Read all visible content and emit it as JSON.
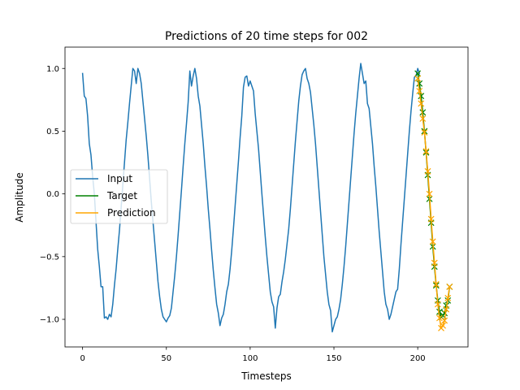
{
  "chart_data": {
    "type": "line",
    "title": "Predictions of 20 time steps for 002",
    "xlabel": "Timesteps",
    "ylabel": "Amplitude",
    "xlim": [
      -10.5,
      230
    ],
    "ylim": [
      -1.22,
      1.17
    ],
    "grid": false,
    "legend_position": "center-left",
    "x_ticks": [
      {
        "value": 0,
        "label": "0"
      },
      {
        "value": 50,
        "label": "50"
      },
      {
        "value": 100,
        "label": "100"
      },
      {
        "value": 150,
        "label": "150"
      },
      {
        "value": 200,
        "label": "200"
      }
    ],
    "y_ticks": [
      {
        "value": -1.0,
        "label": "−1.0"
      },
      {
        "value": -0.5,
        "label": "−0.5"
      },
      {
        "value": 0.0,
        "label": "0.0"
      },
      {
        "value": 0.5,
        "label": "0.5"
      },
      {
        "value": 1.0,
        "label": "1.0"
      }
    ],
    "series": [
      {
        "name": "Input",
        "color": "#1f77b4",
        "marker": "none",
        "x_start": 0,
        "values": [
          0.96,
          0.78,
          0.76,
          0.62,
          0.4,
          0.31,
          0.14,
          0.0,
          -0.22,
          -0.44,
          -0.58,
          -0.74,
          -0.74,
          -0.99,
          -0.98,
          -1.0,
          -0.96,
          -0.98,
          -0.88,
          -0.73,
          -0.6,
          -0.44,
          -0.29,
          -0.11,
          0.07,
          0.25,
          0.43,
          0.57,
          0.72,
          0.86,
          1.0,
          0.98,
          0.88,
          1.0,
          0.96,
          0.88,
          0.74,
          0.6,
          0.46,
          0.3,
          0.12,
          -0.06,
          -0.22,
          -0.38,
          -0.54,
          -0.7,
          -0.82,
          -0.92,
          -0.98,
          -1.0,
          -1.02,
          -0.99,
          -0.97,
          -0.91,
          -0.78,
          -0.65,
          -0.5,
          -0.33,
          -0.15,
          0.03,
          0.22,
          0.4,
          0.56,
          0.73,
          0.98,
          0.86,
          0.94,
          1.0,
          0.92,
          0.78,
          0.7,
          0.55,
          0.4,
          0.22,
          0.06,
          -0.12,
          -0.28,
          -0.45,
          -0.61,
          -0.75,
          -0.88,
          -0.95,
          -1.05,
          -0.99,
          -0.96,
          -0.88,
          -0.78,
          -0.72,
          -0.6,
          -0.45,
          -0.28,
          -0.1,
          0.08,
          0.26,
          0.45,
          0.62,
          0.85,
          0.93,
          0.94,
          0.86,
          0.9,
          0.86,
          0.82,
          0.64,
          0.5,
          0.36,
          0.18,
          0.0,
          -0.17,
          -0.34,
          -0.5,
          -0.64,
          -0.78,
          -0.86,
          -0.9,
          -1.07,
          -0.91,
          -0.82,
          -0.8,
          -0.7,
          -0.62,
          -0.52,
          -0.4,
          -0.28,
          -0.12,
          0.06,
          0.24,
          0.42,
          0.58,
          0.74,
          0.86,
          0.95,
          0.98,
          1.0,
          0.92,
          0.88,
          0.81,
          0.68,
          0.55,
          0.4,
          0.22,
          0.04,
          -0.14,
          -0.32,
          -0.5,
          -0.64,
          -0.78,
          -0.88,
          -0.93,
          -1.1,
          -1.05,
          -1.0,
          -0.98,
          -0.92,
          -0.84,
          -0.72,
          -0.58,
          -0.42,
          -0.24,
          -0.06,
          0.12,
          0.3,
          0.48,
          0.64,
          0.78,
          0.92,
          1.04,
          0.96,
          0.88,
          0.9,
          0.72,
          0.68,
          0.54,
          0.4,
          0.22,
          0.06,
          -0.12,
          -0.3,
          -0.46,
          -0.62,
          -0.78,
          -0.88,
          -0.92,
          -1.0,
          -0.96,
          -0.9,
          -0.84,
          -0.78,
          -0.76,
          -0.6,
          -0.4,
          -0.22,
          -0.04,
          0.14,
          0.32,
          0.5,
          0.66,
          0.8,
          0.93,
          0.94,
          1.0,
          0.96
        ]
      },
      {
        "name": "Target",
        "color": "#008000",
        "marker": "x",
        "x": [
          200,
          201,
          202,
          203,
          204,
          205,
          206,
          207,
          208,
          209,
          210,
          211,
          212,
          213,
          214,
          215,
          216,
          217,
          218,
          219
        ],
        "values": [
          0.96,
          0.88,
          0.78,
          0.65,
          0.5,
          0.33,
          0.15,
          -0.04,
          -0.23,
          -0.42,
          -0.58,
          -0.73,
          -0.85,
          -0.94,
          -0.98,
          -0.97,
          -0.95,
          -0.89,
          -0.85,
          -0.74
        ]
      },
      {
        "name": "Prediction",
        "color": "#ffa500",
        "marker": "x",
        "x": [
          200,
          201,
          202,
          203,
          204,
          205,
          206,
          207,
          208,
          209,
          210,
          211,
          212,
          213,
          214,
          215,
          216,
          217,
          218,
          219
        ],
        "values": [
          0.92,
          0.82,
          0.72,
          0.6,
          0.49,
          0.34,
          0.18,
          0.0,
          -0.2,
          -0.38,
          -0.55,
          -0.72,
          -0.88,
          -0.99,
          -1.07,
          -1.05,
          -1.01,
          -0.92,
          -0.83,
          -0.74
        ]
      }
    ]
  }
}
